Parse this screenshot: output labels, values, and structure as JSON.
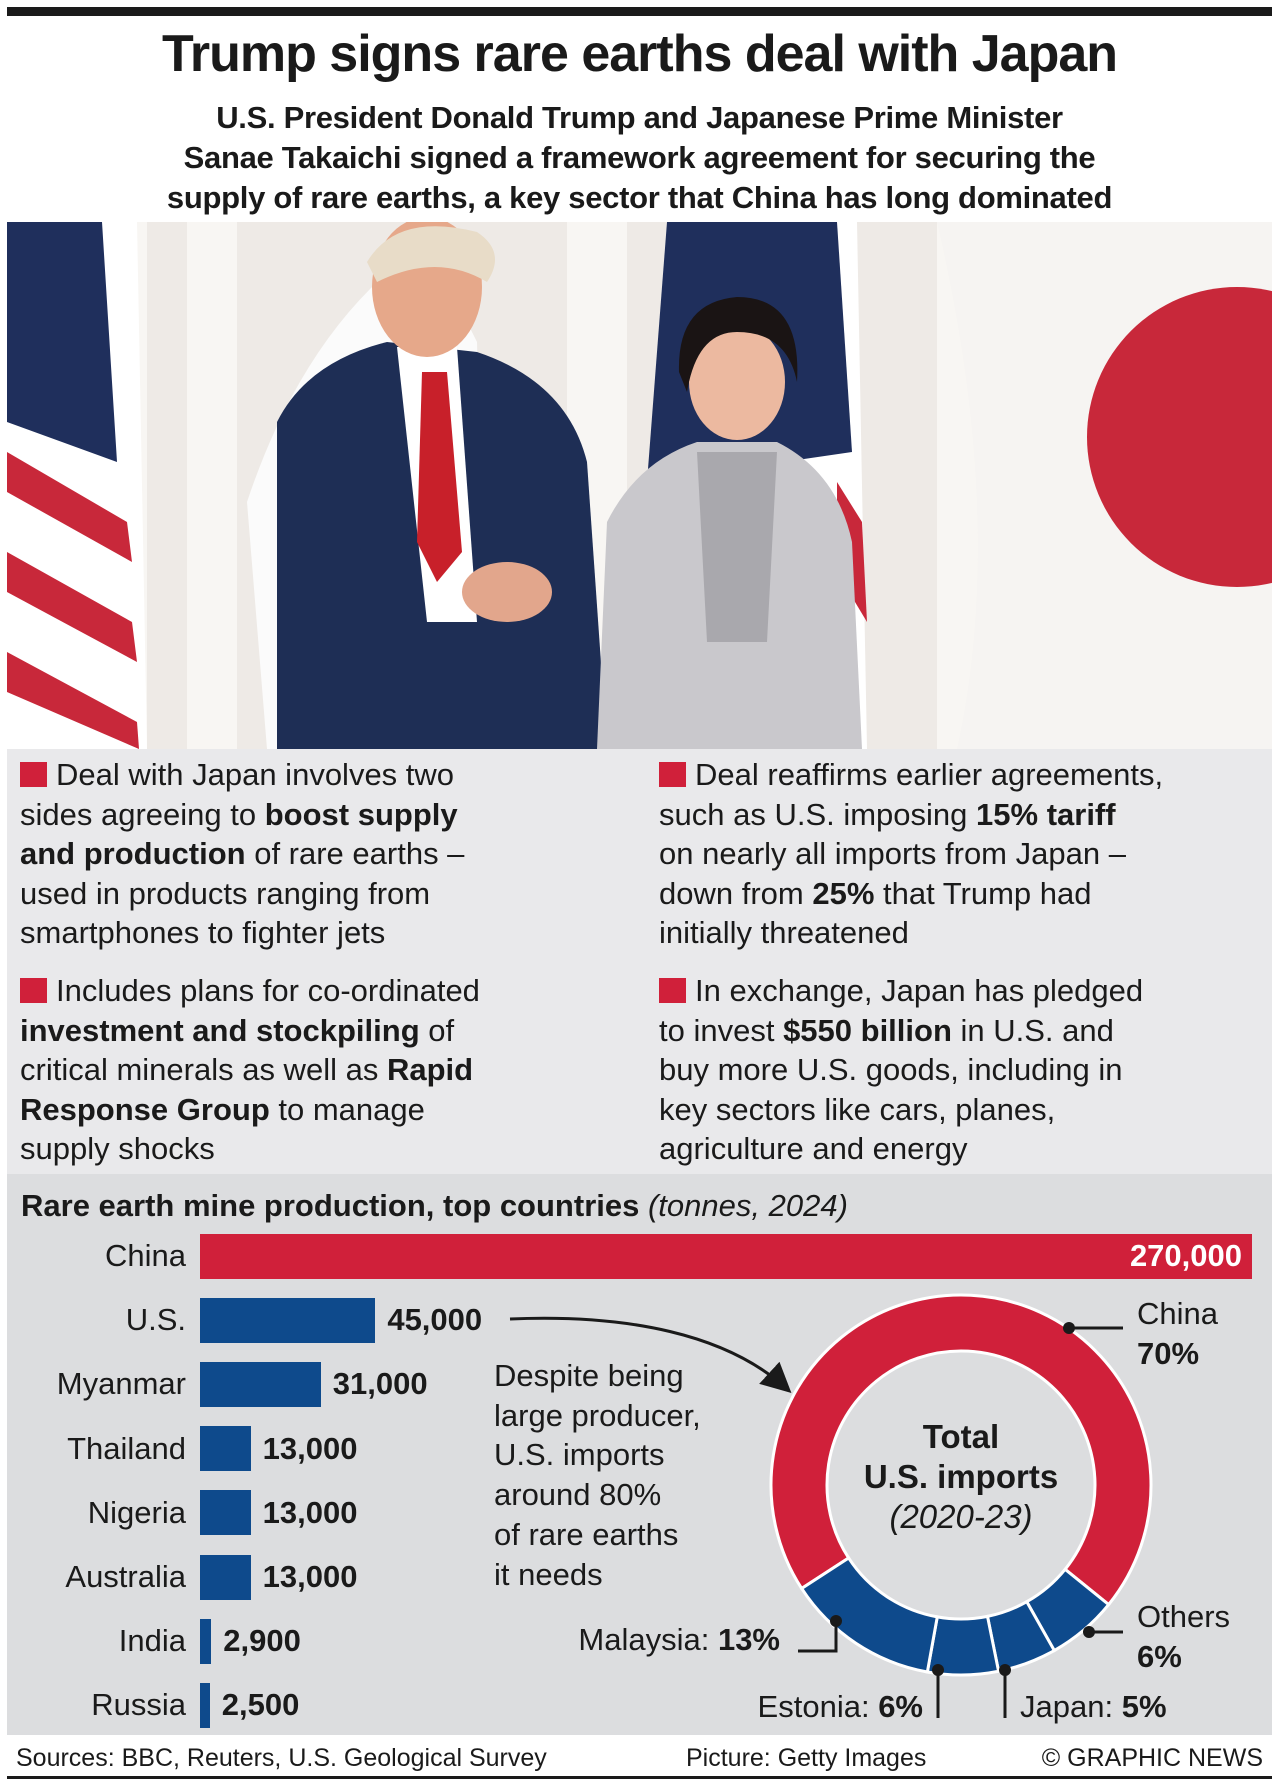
{
  "header": {
    "title": "Trump signs rare earths deal with Japan",
    "subtitle_lines": [
      "U.S. President Donald Trump and Japanese Prime Minister",
      "Sanae Takaichi signed a framework agreement for securing the",
      "supply of rare earths, a key sector that China has long dominated"
    ]
  },
  "photo": {
    "description_icon": "photo-trump-takaichi-handshake"
  },
  "bullets": [
    {
      "lines": [
        [
          [
            "Deal with Japan involves two",
            0
          ]
        ],
        [
          [
            "sides agreeing to ",
            0
          ],
          [
            "boost supply",
            1
          ]
        ],
        [
          [
            "and production",
            1
          ],
          [
            " of rare earths –",
            0
          ]
        ],
        [
          [
            "used in products ranging from",
            0
          ]
        ],
        [
          [
            "smartphones to fighter jets",
            0
          ]
        ]
      ]
    },
    {
      "lines": [
        [
          [
            "Includes plans for co-ordinated",
            0
          ]
        ],
        [
          [
            "investment and stockpiling",
            1
          ],
          [
            " of",
            0
          ]
        ],
        [
          [
            "critical minerals as well as ",
            0
          ],
          [
            "Rapid",
            1
          ]
        ],
        [
          [
            "Response Group",
            1
          ],
          [
            " to manage",
            0
          ]
        ],
        [
          [
            "supply shocks",
            0
          ]
        ]
      ]
    },
    {
      "lines": [
        [
          [
            "Deal reaffirms earlier agreements,",
            0
          ]
        ],
        [
          [
            "such as U.S. imposing ",
            0
          ],
          [
            "15% tariff",
            1
          ]
        ],
        [
          [
            "on nearly all imports from Japan –",
            0
          ]
        ],
        [
          [
            "down from ",
            0
          ],
          [
            "25%",
            1
          ],
          [
            " that Trump had",
            0
          ]
        ],
        [
          [
            "initially threatened",
            0
          ]
        ]
      ]
    },
    {
      "lines": [
        [
          [
            "In exchange, Japan has pledged",
            0
          ]
        ],
        [
          [
            "to invest ",
            0
          ],
          [
            "$550 billion",
            1
          ],
          [
            " in U.S. and",
            0
          ]
        ],
        [
          [
            "buy more U.S. goods, including in",
            0
          ]
        ],
        [
          [
            "key sectors like cars, planes,",
            0
          ]
        ],
        [
          [
            "agriculture and energy",
            0
          ]
        ]
      ]
    }
  ],
  "colors": {
    "red": "#d0203a",
    "blue": "#0e4a8c",
    "panel": "#dcdddf",
    "bullet_bg": "#e9e9eb"
  },
  "chart_data": [
    {
      "type": "bar",
      "orientation": "horizontal",
      "title": "Rare earth mine production, top countries",
      "unit_note": "(tonnes, 2024)",
      "categories": [
        "China",
        "U.S.",
        "Myanmar",
        "Thailand",
        "Nigeria",
        "Australia",
        "India",
        "Russia"
      ],
      "values": [
        270000,
        45000,
        31000,
        13000,
        13000,
        13000,
        2900,
        2500
      ],
      "labels": [
        "270,000",
        "45,000",
        "31,000",
        "13,000",
        "13,000",
        "13,000",
        "2,900",
        "2,500"
      ],
      "highlight": "China",
      "xlim": [
        0,
        270000
      ]
    },
    {
      "type": "pie",
      "style": "donut",
      "center_title": "Total",
      "center_subtitle": "U.S. imports",
      "center_period": "(2020-23)",
      "slices": [
        {
          "name": "China",
          "value": 70,
          "label": "70%",
          "color": "#d0203a"
        },
        {
          "name": "Others",
          "value": 6,
          "label": "6%",
          "color": "#0e4a8c"
        },
        {
          "name": "Japan",
          "value": 5,
          "label": "5%",
          "color": "#0e4a8c"
        },
        {
          "name": "Estonia",
          "value": 6,
          "label": "6%",
          "color": "#0e4a8c"
        },
        {
          "name": "Malaysia",
          "value": 13,
          "label": "13%",
          "color": "#0e4a8c"
        }
      ]
    }
  ],
  "annotation": {
    "lines": [
      "Despite being",
      "large producer,",
      "U.S. imports",
      "around 80%",
      "of rare earths",
      "it needs"
    ]
  },
  "footer": {
    "sources": "Sources: BBC, Reuters, U.S. Geological Survey",
    "picture": "Picture: Getty Images",
    "credit": "© GRAPHIC NEWS"
  }
}
